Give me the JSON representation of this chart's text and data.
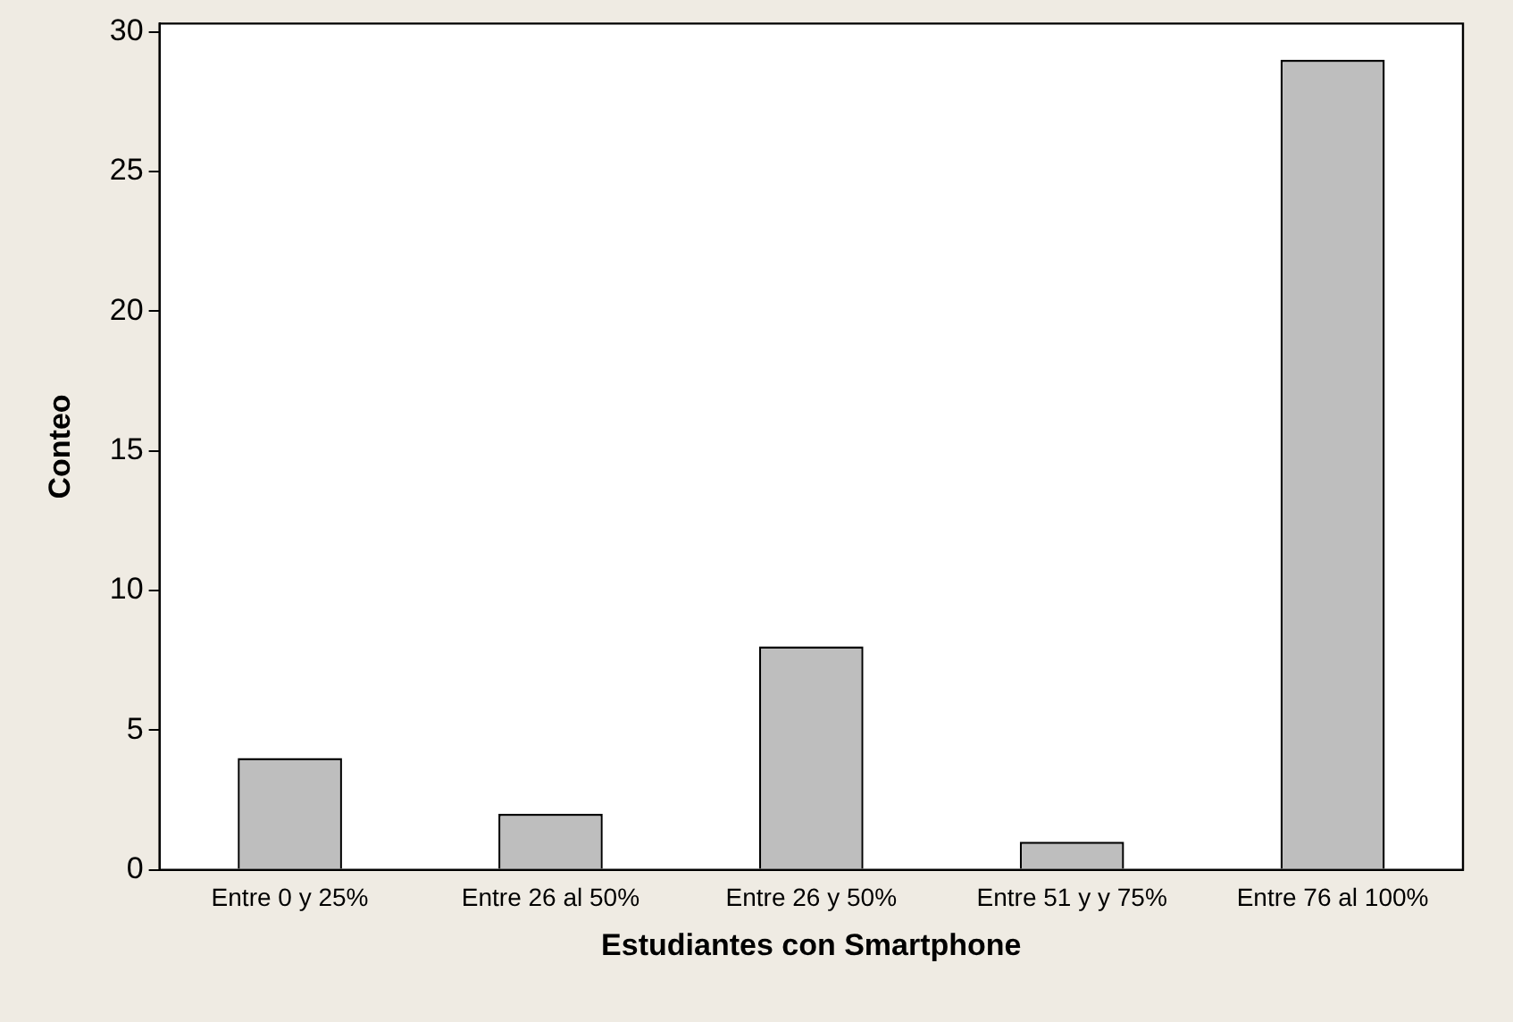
{
  "chart_data": {
    "type": "bar",
    "xlabel": "Estudiantes con Smartphone",
    "ylabel": "Conteo",
    "categories": [
      "Entre 0 y 25%",
      "Entre 26 al 50%",
      "Entre 26 y 50%",
      "Entre 51 y y 75%",
      "Entre 76 al 100%"
    ],
    "values": [
      4,
      2,
      8,
      1,
      29
    ],
    "color": "#bebebe",
    "ylim": [
      0,
      30.3
    ],
    "yticks": [
      0,
      5,
      10,
      15,
      20,
      25,
      30
    ],
    "grid": false,
    "legend": false
  }
}
